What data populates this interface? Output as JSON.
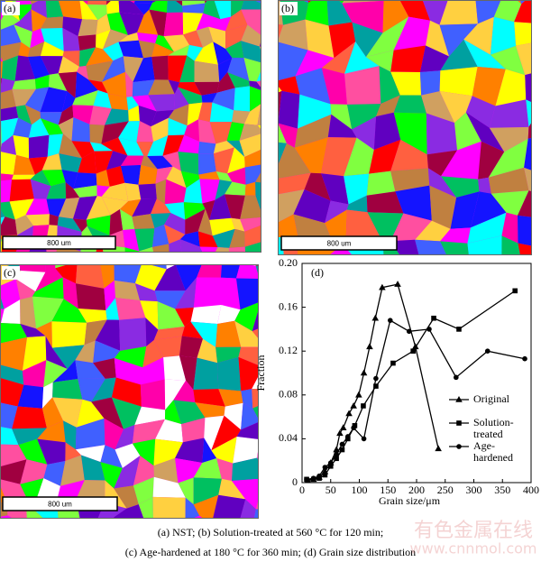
{
  "panels": [
    {
      "label": "(a)",
      "scale_bar": "800 um"
    },
    {
      "label": "(b)",
      "scale_bar": "800 um"
    },
    {
      "label": "(c)",
      "scale_bar": "800 um"
    }
  ],
  "chart_data": {
    "type": "line",
    "panel_label": "(d)",
    "x_label": "Grain size/μm",
    "y_label": "Fraction",
    "xlim": [
      0,
      400
    ],
    "xticks": [
      0,
      50,
      100,
      150,
      200,
      250,
      300,
      350,
      400
    ],
    "ylim": [
      0,
      0.2
    ],
    "yticks": [
      0,
      0.04,
      0.08,
      0.12,
      0.16,
      {
        "value": 0.2,
        "label": "0.20"
      }
    ],
    "legend": "right",
    "series": [
      {
        "name": "Original",
        "color": "#000000",
        "marker": "triangle",
        "x": [
          10,
          20,
          30,
          40,
          50,
          60,
          66,
          72,
          82,
          90,
          99,
          108,
          118,
          128,
          140,
          167,
          198,
          238
        ],
        "values": [
          0.002,
          0.003,
          0.005,
          0.01,
          0.018,
          0.03,
          0.045,
          0.05,
          0.063,
          0.07,
          0.08,
          0.1,
          0.124,
          0.15,
          0.178,
          0.181,
          0.124,
          0.031
        ]
      },
      {
        "name": "Solution-treated",
        "color": "#000000",
        "marker": "square",
        "x": [
          8,
          20,
          30,
          40,
          50,
          60,
          70,
          80,
          92,
          107,
          129,
          159,
          194,
          230,
          274,
          372
        ],
        "values": [
          0.003,
          0.003,
          0.004,
          0.007,
          0.015,
          0.022,
          0.03,
          0.04,
          0.052,
          0.07,
          0.088,
          0.109,
          0.12,
          0.15,
          0.14,
          0.175
        ]
      },
      {
        "name": "Age-hardened",
        "color": "#000000",
        "marker": "circle",
        "x": [
          8,
          20,
          30,
          40,
          50,
          60,
          70,
          80,
          90,
          108,
          129,
          154,
          187,
          222,
          269,
          324,
          389
        ],
        "values": [
          0.003,
          0.004,
          0.006,
          0.014,
          0.018,
          0.026,
          0.035,
          0.042,
          0.05,
          0.04,
          0.095,
          0.148,
          0.138,
          0.14,
          0.096,
          0.12,
          0.113
        ]
      }
    ]
  },
  "caption": [
    "(a) NST; (b) Solution-treated at 560 °C for 120 min;",
    "(c) Age-hardened at 180 °C for 360 min; (d) Grain size distribution"
  ],
  "watermark": [
    "有色金属在线",
    "www.cnnmol.com"
  ]
}
